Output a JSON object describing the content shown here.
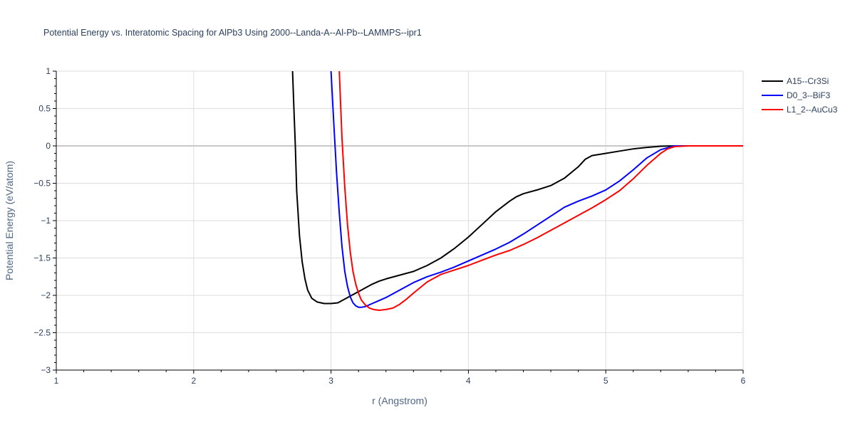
{
  "chart_data": {
    "type": "line",
    "title": "Potential Energy vs. Interatomic Spacing for AlPb3 Using 2000--Landa-A--Al-Pb--LAMMPS--ipr1",
    "xlabel": "r (Angstrom)",
    "ylabel": "Potential Energy (eV/atom)",
    "xlim": [
      1,
      6
    ],
    "ylim": [
      -3,
      1
    ],
    "xticks": [
      1,
      2,
      3,
      4,
      5,
      6
    ],
    "yticks": [
      -3,
      -2.5,
      -2,
      -1.5,
      -1,
      -0.5,
      0,
      0.5,
      1
    ],
    "xtick_labels": [
      "1",
      "2",
      "3",
      "4",
      "5",
      "6"
    ],
    "ytick_labels": [
      "−3",
      "−2.5",
      "−2",
      "−1.5",
      "−1",
      "−0.5",
      "0",
      "0.5",
      "1"
    ],
    "grid": true,
    "legend_position": "top-right",
    "series": [
      {
        "name": "A15--Cr3Si",
        "color": "#000000",
        "x": [
          2.72,
          2.73,
          2.74,
          2.75,
          2.77,
          2.79,
          2.81,
          2.83,
          2.86,
          2.9,
          2.95,
          3.0,
          3.05,
          3.1,
          3.15,
          3.2,
          3.25,
          3.3,
          3.35,
          3.4,
          3.5,
          3.6,
          3.7,
          3.8,
          3.9,
          4.0,
          4.1,
          4.2,
          4.3,
          4.35,
          4.4,
          4.5,
          4.6,
          4.7,
          4.8,
          4.85,
          4.9,
          5.0,
          5.1,
          5.2,
          5.3,
          5.4,
          5.5,
          6.0
        ],
        "y": [
          1.0,
          0.5,
          0.0,
          -0.6,
          -1.2,
          -1.55,
          -1.78,
          -1.93,
          -2.04,
          -2.09,
          -2.11,
          -2.11,
          -2.1,
          -2.05,
          -2.0,
          -1.95,
          -1.9,
          -1.85,
          -1.81,
          -1.78,
          -1.73,
          -1.68,
          -1.6,
          -1.5,
          -1.37,
          -1.22,
          -1.05,
          -0.88,
          -0.74,
          -0.68,
          -0.64,
          -0.59,
          -0.53,
          -0.43,
          -0.28,
          -0.18,
          -0.13,
          -0.1,
          -0.07,
          -0.04,
          -0.02,
          -0.005,
          0.0,
          0.0
        ]
      },
      {
        "name": "D0_3--BiF3",
        "color": "#0000ff",
        "x": [
          3.0,
          3.02,
          3.04,
          3.06,
          3.08,
          3.1,
          3.12,
          3.14,
          3.16,
          3.18,
          3.2,
          3.22,
          3.25,
          3.3,
          3.35,
          3.4,
          3.5,
          3.6,
          3.7,
          3.8,
          3.9,
          4.0,
          4.1,
          4.2,
          4.3,
          4.4,
          4.5,
          4.6,
          4.7,
          4.8,
          4.9,
          5.0,
          5.1,
          5.2,
          5.3,
          5.4,
          5.5,
          5.6,
          6.0
        ],
        "y": [
          1.0,
          0.3,
          -0.35,
          -0.9,
          -1.35,
          -1.68,
          -1.88,
          -2.02,
          -2.1,
          -2.14,
          -2.16,
          -2.16,
          -2.15,
          -2.11,
          -2.07,
          -2.03,
          -1.93,
          -1.83,
          -1.75,
          -1.69,
          -1.62,
          -1.54,
          -1.46,
          -1.38,
          -1.29,
          -1.18,
          -1.06,
          -0.94,
          -0.82,
          -0.74,
          -0.67,
          -0.59,
          -0.47,
          -0.32,
          -0.16,
          -0.05,
          0.0,
          0.0,
          0.0
        ]
      },
      {
        "name": "L1_2--AuCu3",
        "color": "#ff0000",
        "x": [
          3.06,
          3.08,
          3.1,
          3.12,
          3.14,
          3.16,
          3.18,
          3.2,
          3.22,
          3.25,
          3.28,
          3.31,
          3.35,
          3.4,
          3.45,
          3.5,
          3.55,
          3.6,
          3.7,
          3.8,
          3.9,
          4.0,
          4.1,
          4.2,
          4.3,
          4.4,
          4.5,
          4.6,
          4.7,
          4.8,
          4.9,
          5.0,
          5.1,
          5.2,
          5.3,
          5.4,
          5.45,
          5.5,
          5.6,
          6.0
        ],
        "y": [
          1.0,
          0.1,
          -0.55,
          -1.05,
          -1.42,
          -1.68,
          -1.85,
          -1.97,
          -2.06,
          -2.13,
          -2.17,
          -2.19,
          -2.2,
          -2.19,
          -2.17,
          -2.12,
          -2.05,
          -1.97,
          -1.82,
          -1.72,
          -1.66,
          -1.6,
          -1.53,
          -1.46,
          -1.4,
          -1.32,
          -1.23,
          -1.13,
          -1.03,
          -0.93,
          -0.83,
          -0.72,
          -0.6,
          -0.44,
          -0.26,
          -0.1,
          -0.04,
          -0.01,
          0.0,
          0.0
        ]
      }
    ]
  }
}
